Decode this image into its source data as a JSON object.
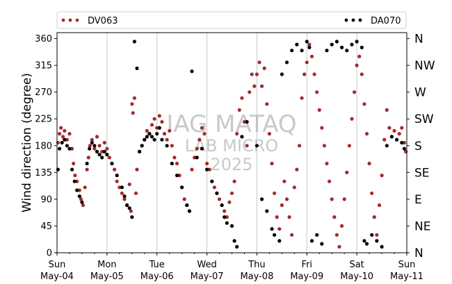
{
  "chart_data": {
    "type": "scatter",
    "ylabel": "Wind direction (degree)",
    "xlabel": "",
    "ylim": [
      0,
      370
    ],
    "yticks": [
      0,
      45,
      90,
      135,
      180,
      225,
      270,
      315,
      360
    ],
    "ytick_labels": [
      "0",
      "45",
      "90",
      "135",
      "180",
      "225",
      "270",
      "315",
      "360"
    ],
    "compass_labels": [
      "N",
      "NE",
      "E",
      "SE",
      "S",
      "SW",
      "W",
      "NW",
      "N"
    ],
    "compass_values": [
      0,
      45,
      90,
      135,
      180,
      225,
      270,
      315,
      360
    ],
    "xlim": [
      "2025-05-04",
      "2025-05-11"
    ],
    "xtick_labels": [
      [
        "Sun",
        "May-04"
      ],
      [
        "Mon",
        "May-05"
      ],
      [
        "Tue",
        "May-06"
      ],
      [
        "Wed",
        "May-07"
      ],
      [
        "Thu",
        "May-08"
      ],
      [
        "Fri",
        "May-09"
      ],
      [
        "Sat",
        "May-10"
      ],
      [
        "Sun",
        "May-11"
      ]
    ],
    "grid": "vertical",
    "legend_position": "top",
    "watermark": [
      "IAG MATAQ",
      "LAB MICRO",
      "2025"
    ],
    "colors": {
      "DV063": "#a52a2a",
      "DA070": "#000000"
    },
    "series": [
      {
        "name": "DV063",
        "color": "#a52a2a",
        "points": [
          [
            0.02,
            185
          ],
          [
            0.05,
            200
          ],
          [
            0.08,
            210
          ],
          [
            0.12,
            195
          ],
          [
            0.15,
            205
          ],
          [
            0.2,
            190
          ],
          [
            0.25,
            200
          ],
          [
            0.3,
            175
          ],
          [
            0.33,
            150
          ],
          [
            0.36,
            130
          ],
          [
            0.4,
            120
          ],
          [
            0.45,
            105
          ],
          [
            0.48,
            90
          ],
          [
            0.52,
            80
          ],
          [
            0.56,
            110
          ],
          [
            0.6,
            140
          ],
          [
            0.63,
            160
          ],
          [
            0.66,
            180
          ],
          [
            0.7,
            190
          ],
          [
            0.75,
            175
          ],
          [
            0.8,
            195
          ],
          [
            0.85,
            180
          ],
          [
            0.9,
            170
          ],
          [
            0.95,
            185
          ],
          [
            1.0,
            175
          ],
          [
            1.05,
            160
          ],
          [
            1.1,
            150
          ],
          [
            1.15,
            140
          ],
          [
            1.2,
            120
          ],
          [
            1.25,
            110
          ],
          [
            1.3,
            100
          ],
          [
            1.35,
            90
          ],
          [
            1.4,
            80
          ],
          [
            1.45,
            115
          ],
          [
            1.48,
            70
          ],
          [
            1.5,
            250
          ],
          [
            1.52,
            235
          ],
          [
            1.55,
            260
          ],
          [
            1.58,
            100
          ],
          [
            1.6,
            140
          ],
          [
            1.65,
            170
          ],
          [
            1.7,
            180
          ],
          [
            1.75,
            190
          ],
          [
            1.8,
            205
          ],
          [
            1.85,
            200
          ],
          [
            1.9,
            215
          ],
          [
            1.95,
            225
          ],
          [
            2.0,
            210
          ],
          [
            2.05,
            230
          ],
          [
            2.1,
            220
          ],
          [
            2.15,
            200
          ],
          [
            2.2,
            190
          ],
          [
            2.25,
            205
          ],
          [
            2.3,
            180
          ],
          [
            2.35,
            160
          ],
          [
            2.4,
            150
          ],
          [
            2.45,
            130
          ],
          [
            2.5,
            110
          ],
          [
            2.55,
            90
          ],
          [
            2.6,
            80
          ],
          [
            2.65,
            70
          ],
          [
            2.7,
            140
          ],
          [
            2.75,
            160
          ],
          [
            2.8,
            175
          ],
          [
            2.85,
            190
          ],
          [
            2.9,
            210
          ],
          [
            2.95,
            200
          ],
          [
            3.0,
            150
          ],
          [
            3.05,
            140
          ],
          [
            3.1,
            120
          ],
          [
            3.15,
            110
          ],
          [
            3.2,
            100
          ],
          [
            3.25,
            90
          ],
          [
            3.3,
            80
          ],
          [
            3.35,
            70
          ],
          [
            3.4,
            60
          ],
          [
            3.45,
            85
          ],
          [
            3.5,
            100
          ],
          [
            3.55,
            120
          ],
          [
            3.6,
            200
          ],
          [
            3.65,
            240
          ],
          [
            3.7,
            260
          ],
          [
            3.75,
            220
          ],
          [
            3.8,
            180
          ],
          [
            3.85,
            270
          ],
          [
            3.9,
            300
          ],
          [
            3.95,
            280
          ],
          [
            4.0,
            300
          ],
          [
            4.05,
            320
          ],
          [
            4.1,
            280
          ],
          [
            4.15,
            310
          ],
          [
            4.2,
            250
          ],
          [
            4.25,
            200
          ],
          [
            4.3,
            150
          ],
          [
            4.35,
            100
          ],
          [
            4.4,
            60
          ],
          [
            4.45,
            40
          ],
          [
            4.5,
            80
          ],
          [
            4.55,
            120
          ],
          [
            4.6,
            90
          ],
          [
            4.65,
            60
          ],
          [
            4.7,
            30
          ],
          [
            4.75,
            110
          ],
          [
            4.8,
            140
          ],
          [
            4.85,
            180
          ],
          [
            4.9,
            260
          ],
          [
            4.95,
            300
          ],
          [
            5.0,
            320
          ],
          [
            5.05,
            350
          ],
          [
            5.1,
            330
          ],
          [
            5.15,
            300
          ],
          [
            5.2,
            270
          ],
          [
            5.25,
            240
          ],
          [
            5.3,
            210
          ],
          [
            5.35,
            180
          ],
          [
            5.4,
            150
          ],
          [
            5.45,
            120
          ],
          [
            5.5,
            90
          ],
          [
            5.55,
            60
          ],
          [
            5.6,
            30
          ],
          [
            5.65,
            10
          ],
          [
            5.7,
            45
          ],
          [
            5.75,
            90
          ],
          [
            5.8,
            135
          ],
          [
            5.85,
            180
          ],
          [
            5.9,
            225
          ],
          [
            5.95,
            270
          ],
          [
            6.0,
            315
          ],
          [
            6.05,
            330
          ],
          [
            6.1,
            300
          ],
          [
            6.15,
            250
          ],
          [
            6.2,
            200
          ],
          [
            6.25,
            150
          ],
          [
            6.3,
            100
          ],
          [
            6.35,
            60
          ],
          [
            6.4,
            30
          ],
          [
            6.45,
            80
          ],
          [
            6.5,
            130
          ],
          [
            6.55,
            190
          ],
          [
            6.6,
            240
          ],
          [
            6.65,
            210
          ],
          [
            6.7,
            195
          ],
          [
            6.75,
            205
          ],
          [
            6.8,
            190
          ],
          [
            6.85,
            200
          ],
          [
            6.9,
            210
          ],
          [
            6.95,
            185
          ],
          [
            6.98,
            170
          ]
        ]
      },
      {
        "name": "DA070",
        "color": "#000000",
        "points": [
          [
            0.02,
            140
          ],
          [
            0.05,
            175
          ],
          [
            0.1,
            185
          ],
          [
            0.15,
            190
          ],
          [
            0.2,
            180
          ],
          [
            0.25,
            175
          ],
          [
            0.3,
            140
          ],
          [
            0.35,
            120
          ],
          [
            0.4,
            105
          ],
          [
            0.45,
            95
          ],
          [
            0.5,
            85
          ],
          [
            0.6,
            150
          ],
          [
            0.65,
            175
          ],
          [
            0.7,
            185
          ],
          [
            0.75,
            180
          ],
          [
            0.8,
            170
          ],
          [
            0.85,
            165
          ],
          [
            0.9,
            160
          ],
          [
            0.95,
            170
          ],
          [
            1.0,
            165
          ],
          [
            1.1,
            150
          ],
          [
            1.2,
            130
          ],
          [
            1.3,
            110
          ],
          [
            1.35,
            95
          ],
          [
            1.4,
            80
          ],
          [
            1.45,
            75
          ],
          [
            1.5,
            60
          ],
          [
            1.55,
            355
          ],
          [
            1.6,
            310
          ],
          [
            1.65,
            170
          ],
          [
            1.7,
            180
          ],
          [
            1.75,
            190
          ],
          [
            1.8,
            195
          ],
          [
            1.85,
            200
          ],
          [
            1.9,
            195
          ],
          [
            1.95,
            190
          ],
          [
            2.0,
            200
          ],
          [
            2.05,
            210
          ],
          [
            2.1,
            190
          ],
          [
            2.2,
            180
          ],
          [
            2.3,
            150
          ],
          [
            2.4,
            130
          ],
          [
            2.5,
            110
          ],
          [
            2.6,
            80
          ],
          [
            2.65,
            70
          ],
          [
            2.7,
            305
          ],
          [
            2.8,
            160
          ],
          [
            2.9,
            175
          ],
          [
            3.0,
            140
          ],
          [
            3.1,
            120
          ],
          [
            3.2,
            100
          ],
          [
            3.3,
            80
          ],
          [
            3.35,
            60
          ],
          [
            3.4,
            50
          ],
          [
            3.5,
            45
          ],
          [
            3.55,
            20
          ],
          [
            3.6,
            10
          ],
          [
            3.7,
            195
          ],
          [
            3.8,
            220
          ],
          [
            4.0,
            180
          ],
          [
            4.1,
            90
          ],
          [
            4.2,
            70
          ],
          [
            4.3,
            40
          ],
          [
            4.35,
            30
          ],
          [
            4.45,
            20
          ],
          [
            4.5,
            300
          ],
          [
            4.6,
            320
          ],
          [
            4.7,
            340
          ],
          [
            4.8,
            350
          ],
          [
            4.9,
            340
          ],
          [
            5.0,
            355
          ],
          [
            5.05,
            345
          ],
          [
            5.1,
            20
          ],
          [
            5.2,
            30
          ],
          [
            5.3,
            15
          ],
          [
            5.4,
            340
          ],
          [
            5.5,
            350
          ],
          [
            5.6,
            355
          ],
          [
            5.7,
            345
          ],
          [
            5.8,
            340
          ],
          [
            5.9,
            350
          ],
          [
            6.0,
            355
          ],
          [
            6.1,
            345
          ],
          [
            6.15,
            20
          ],
          [
            6.2,
            15
          ],
          [
            6.3,
            30
          ],
          [
            6.4,
            20
          ],
          [
            6.5,
            10
          ],
          [
            6.6,
            180
          ],
          [
            6.7,
            195
          ],
          [
            6.8,
            190
          ],
          [
            6.9,
            185
          ],
          [
            6.95,
            175
          ]
        ]
      }
    ]
  }
}
